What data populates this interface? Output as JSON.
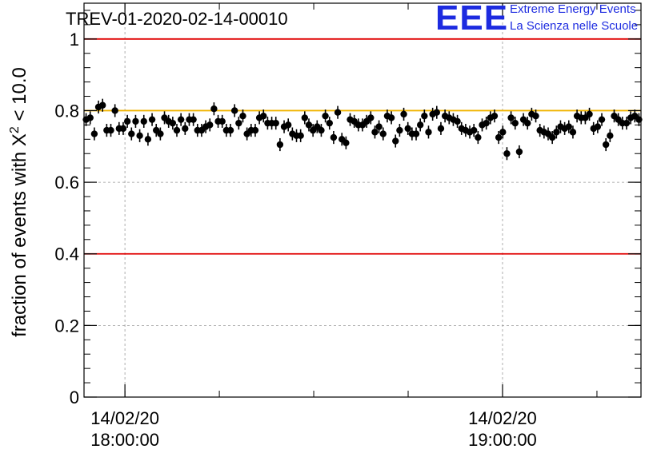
{
  "title": "TREV-01-2020-02-14-00010",
  "logo": {
    "mark": "EEE",
    "line1": "Extreme Energy Events",
    "line2": "La Scienza nelle Scuole"
  },
  "colors": {
    "points": "#000000",
    "reference_lines": "#e00000",
    "mean_line": "#f0b400",
    "grid": "#9a9a9a",
    "logo": "#1d2be0"
  },
  "chart_data": {
    "type": "scatter",
    "title": "TREV-01-2020-02-14-00010",
    "ylabel_prefix": "fraction of events with X",
    "ylabel_superscript": "2",
    "ylabel_suffix": " < 10.0",
    "xlabel": "",
    "x_axis_kind": "time",
    "xlim": [
      "2020-02-14 17:53:30",
      "2020-02-14 19:22:00"
    ],
    "ylim": [
      0,
      1.1
    ],
    "yticks": [
      0,
      0.2,
      0.4,
      0.6,
      0.8,
      1
    ],
    "ytick_labels": [
      "0",
      "0.2",
      "0.4",
      "0.6",
      "0.8",
      "1"
    ],
    "xticks": [
      {
        "time": "2020-02-14 18:00:00",
        "line1": "14/02/20",
        "line2": "18:00:00"
      },
      {
        "time": "2020-02-14 19:00:00",
        "line1": "14/02/20",
        "line2": "19:00:00"
      }
    ],
    "grid": true,
    "reference_lines": [
      0.4,
      1.0
    ],
    "mean_line": 0.8,
    "error_bar": 0.018,
    "series": [
      {
        "x_start": "2020-02-14 17:53:30",
        "x_end": "2020-02-14 19:22:00",
        "values": [
          0.775,
          0.78,
          0.735,
          0.81,
          0.815,
          0.745,
          0.745,
          0.8,
          0.75,
          0.75,
          0.77,
          0.735,
          0.77,
          0.73,
          0.77,
          0.72,
          0.775,
          0.745,
          0.735,
          0.78,
          0.77,
          0.765,
          0.745,
          0.775,
          0.75,
          0.775,
          0.775,
          0.745,
          0.745,
          0.755,
          0.76,
          0.805,
          0.77,
          0.77,
          0.745,
          0.745,
          0.8,
          0.765,
          0.785,
          0.735,
          0.745,
          0.745,
          0.78,
          0.785,
          0.765,
          0.765,
          0.765,
          0.705,
          0.755,
          0.76,
          0.735,
          0.73,
          0.73,
          0.78,
          0.76,
          0.745,
          0.755,
          0.745,
          0.785,
          0.765,
          0.725,
          0.795,
          0.72,
          0.71,
          0.775,
          0.77,
          0.76,
          0.76,
          0.77,
          0.78,
          0.74,
          0.755,
          0.735,
          0.785,
          0.78,
          0.715,
          0.745,
          0.79,
          0.75,
          0.735,
          0.735,
          0.76,
          0.785,
          0.74,
          0.79,
          0.795,
          0.75,
          0.785,
          0.78,
          0.775,
          0.77,
          0.75,
          0.745,
          0.74,
          0.745,
          0.725,
          0.76,
          0.765,
          0.78,
          0.785,
          0.725,
          0.74,
          0.68,
          0.78,
          0.765,
          0.685,
          0.775,
          0.765,
          0.79,
          0.785,
          0.745,
          0.74,
          0.735,
          0.725,
          0.74,
          0.755,
          0.75,
          0.755,
          0.74,
          0.785,
          0.78,
          0.78,
          0.79,
          0.75,
          0.755,
          0.775,
          0.705,
          0.73,
          0.785,
          0.775,
          0.765,
          0.765,
          0.78,
          0.785,
          0.775
        ]
      }
    ]
  }
}
